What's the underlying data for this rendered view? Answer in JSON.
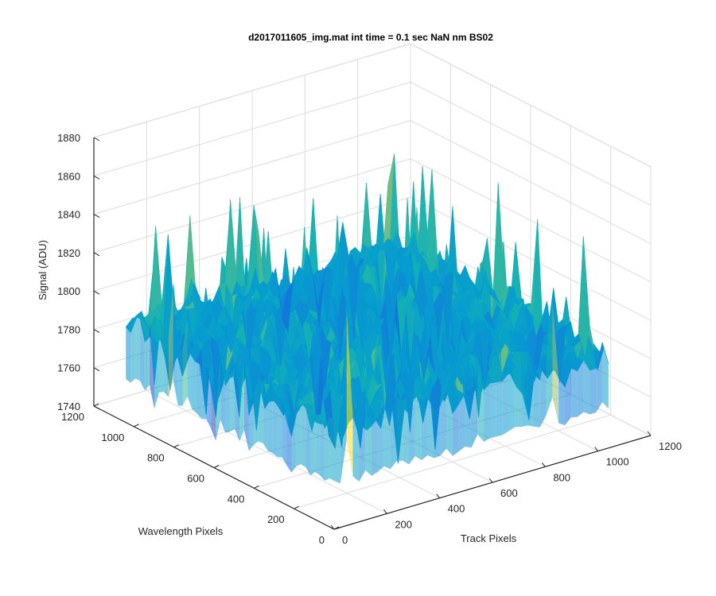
{
  "chart_data": {
    "type": "surface",
    "title": "d2017011605_img.mat int time = 0.1 sec  NaN nm BS02",
    "xlabel": "Track Pixels",
    "ylabel": "Wavelength Pixels",
    "zlabel": "Signal (ADU)",
    "xlim": [
      0,
      1200
    ],
    "ylim": [
      0,
      1200
    ],
    "zlim": [
      1740,
      1880
    ],
    "x_ticks": [
      "0",
      "200",
      "400",
      "600",
      "800",
      "1000",
      "1200"
    ],
    "y_ticks": [
      "0",
      "200",
      "400",
      "600",
      "800",
      "1000",
      "1200"
    ],
    "z_ticks": [
      "1740",
      "1760",
      "1780",
      "1800",
      "1820",
      "1840",
      "1860",
      "1880"
    ],
    "x_extent": [
      0,
      1040
    ],
    "y_extent": [
      0,
      1040
    ],
    "signal_baseline": 1792,
    "signal_range": [
      1748,
      1872
    ],
    "grid": true,
    "colormap": "parula"
  }
}
